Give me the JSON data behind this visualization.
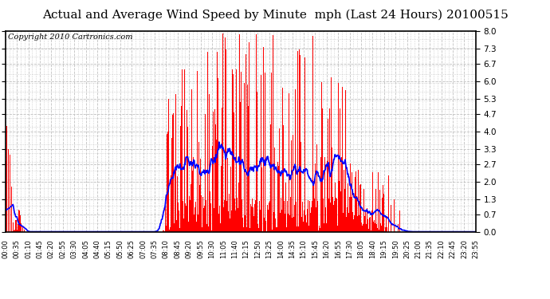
{
  "title": "Actual and Average Wind Speed by Minute  mph (Last 24 Hours) 20100515",
  "copyright_text": "Copyright 2010 Cartronics.com",
  "yticks": [
    0.0,
    0.7,
    1.3,
    2.0,
    2.7,
    3.3,
    4.0,
    4.7,
    5.3,
    6.0,
    6.7,
    7.3,
    8.0
  ],
  "ylim": [
    0.0,
    8.0
  ],
  "bar_color": "#ff0000",
  "line_color": "#0000ff",
  "background_color": "#ffffff",
  "grid_color": "#c0c0c0",
  "title_fontsize": 11,
  "copyright_fontsize": 7,
  "xtick_labels": [
    "00:00",
    "00:35",
    "01:10",
    "01:45",
    "02:20",
    "02:55",
    "03:30",
    "04:05",
    "04:40",
    "05:15",
    "05:50",
    "06:25",
    "07:00",
    "07:35",
    "08:10",
    "08:45",
    "09:20",
    "09:55",
    "10:30",
    "11:05",
    "11:40",
    "12:15",
    "12:50",
    "13:25",
    "14:00",
    "14:35",
    "15:10",
    "15:45",
    "16:20",
    "16:55",
    "17:30",
    "18:05",
    "18:40",
    "19:15",
    "19:50",
    "20:25",
    "21:00",
    "21:35",
    "22:10",
    "22:45",
    "23:20",
    "23:55"
  ]
}
